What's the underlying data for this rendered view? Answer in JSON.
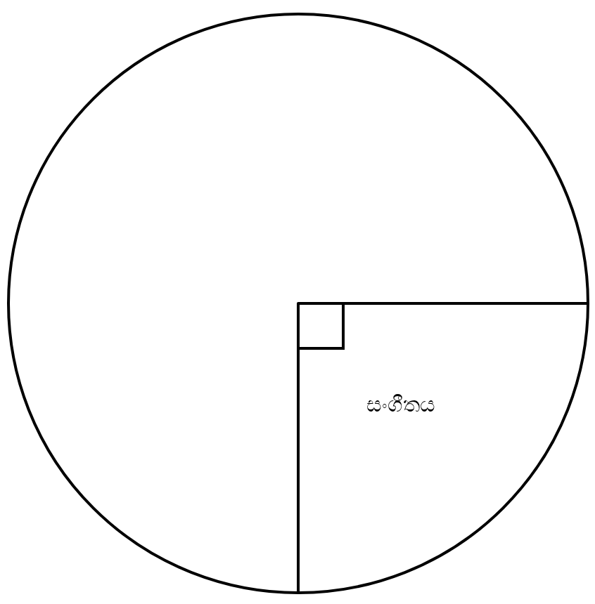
{
  "chart_data": {
    "type": "pie",
    "categories": [
      "සංගීතය",
      null
    ],
    "values": [
      25,
      75
    ],
    "colors": [
      "#ffffff",
      "#ffffff"
    ]
  }
}
